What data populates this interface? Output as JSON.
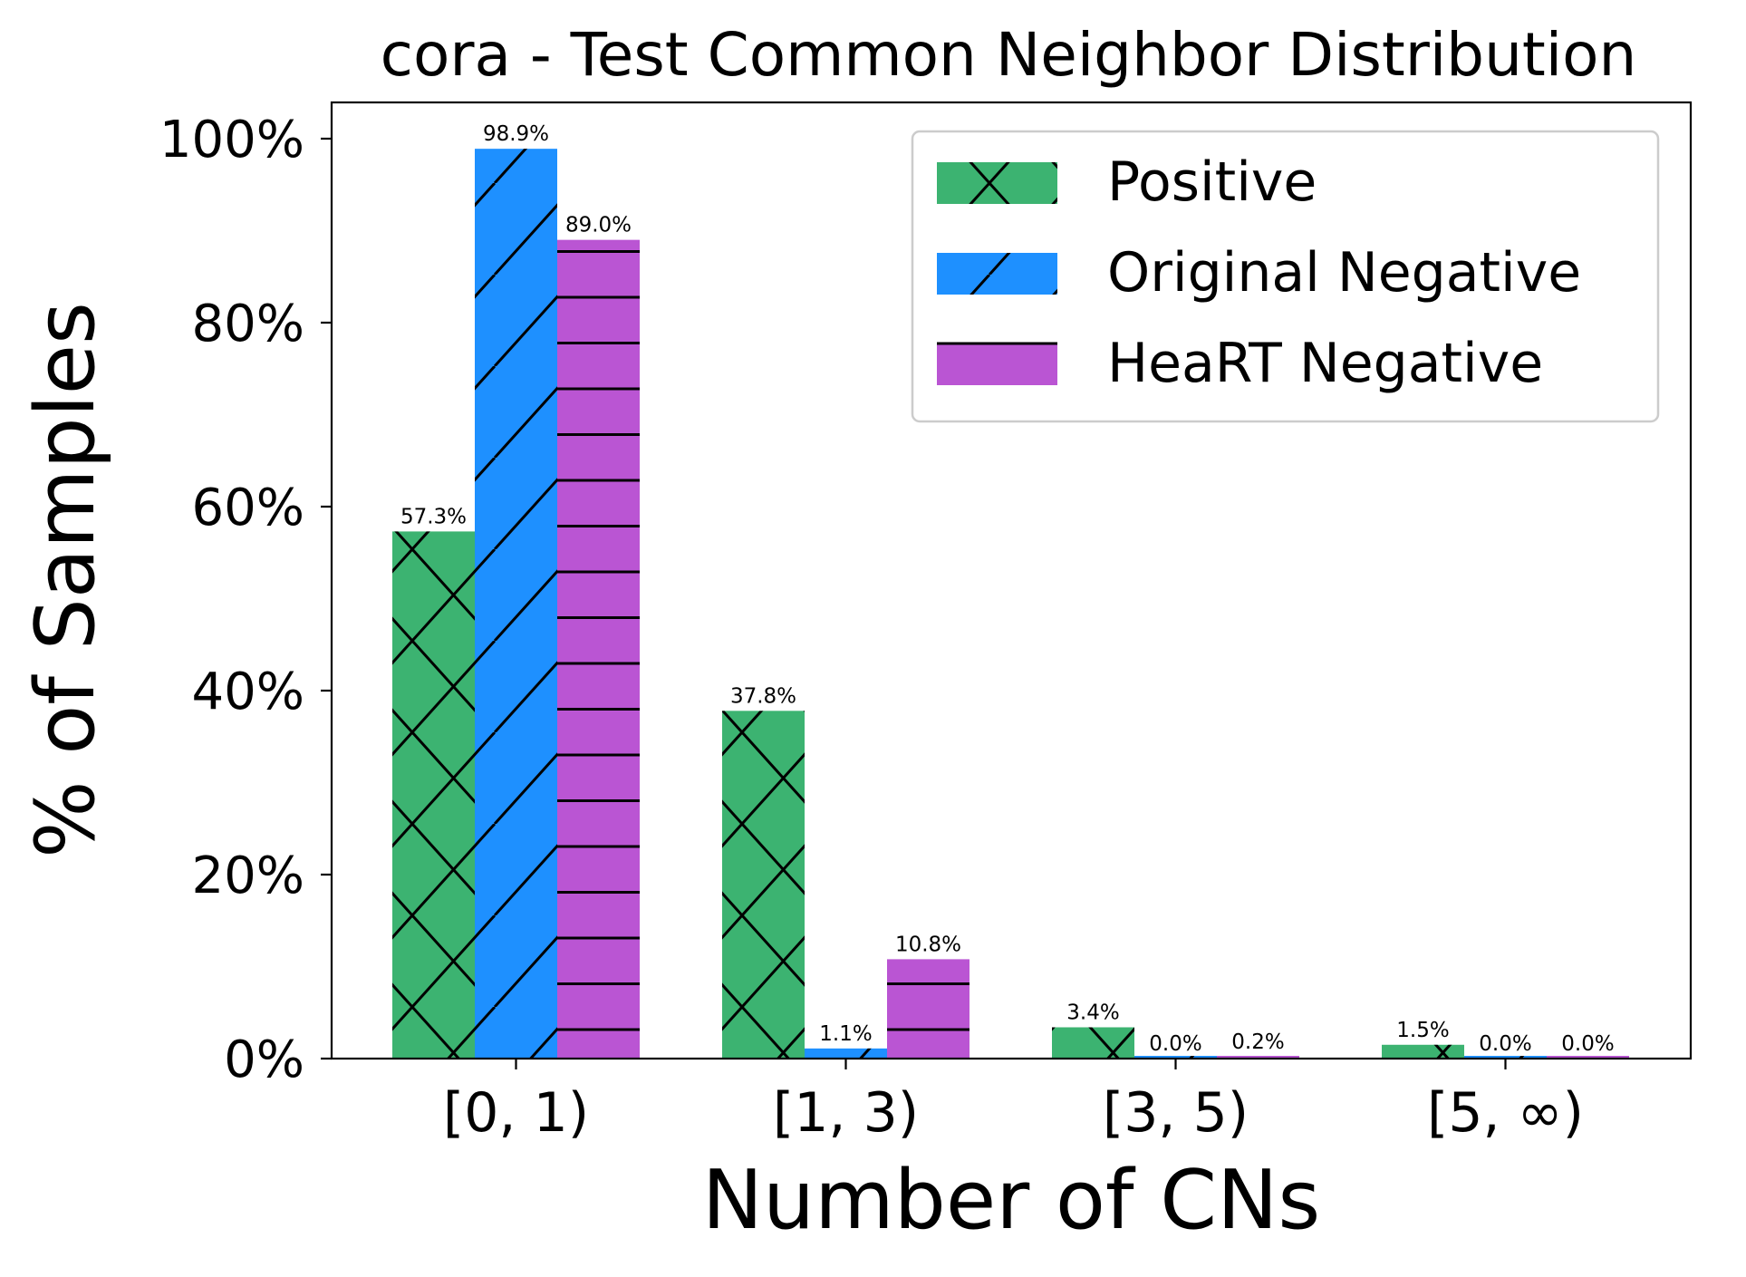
{
  "chart_data": {
    "type": "bar",
    "title": "cora - Test Common Neighbor Distribution",
    "xlabel": "Number of CNs",
    "ylabel": "% of Samples",
    "categories": [
      "[0, 1)",
      "[1, 3)",
      "[3, 5)",
      "[5, ∞)"
    ],
    "series": [
      {
        "name": "Positive",
        "color": "#3cb371",
        "hatch": "cross",
        "values": [
          57.3,
          37.8,
          3.4,
          1.5
        ],
        "labels": [
          "57.3%",
          "37.8%",
          "3.4%",
          "1.5%"
        ]
      },
      {
        "name": "Original Negative",
        "color": "#1e90ff",
        "hatch": "diagonal",
        "values": [
          98.9,
          1.1,
          0.0,
          0.0
        ],
        "labels": [
          "98.9%",
          "1.1%",
          "0.0%",
          "0.0%"
        ]
      },
      {
        "name": "HeaRT Negative",
        "color": "#ba55d3",
        "hatch": "horizontal",
        "values": [
          89.0,
          10.8,
          0.2,
          0.0
        ],
        "labels": [
          "89.0%",
          "10.8%",
          "0.2%",
          "0.0%"
        ]
      }
    ],
    "ylim": [
      0,
      100
    ],
    "yticks": [
      0,
      20,
      40,
      60,
      80,
      100
    ],
    "ytick_labels": [
      "0%",
      "20%",
      "40%",
      "60%",
      "80%",
      "100%"
    ],
    "grid": false,
    "legend_position": "top-right"
  }
}
